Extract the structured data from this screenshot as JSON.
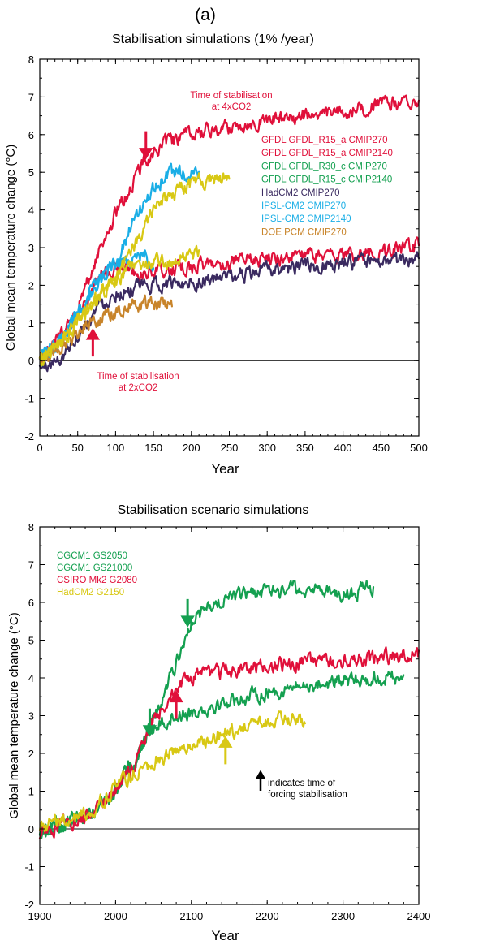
{
  "panel_letter": "(a)",
  "chart_data": [
    {
      "type": "line",
      "title": "Stabilisation simulations (1% /year)",
      "xlabel": "Year",
      "ylabel": "Global mean temperature change (°C)",
      "xlim": [
        0,
        500
      ],
      "ylim": [
        -2,
        8
      ],
      "xticks": [
        0,
        50,
        100,
        150,
        200,
        250,
        300,
        350,
        400,
        450,
        500
      ],
      "yticks": [
        -2,
        -1,
        0,
        1,
        2,
        3,
        4,
        5,
        6,
        7,
        8
      ],
      "series": [
        {
          "name": "GFDL   GFDL_R15_a CMIP270",
          "color": "#e0103a",
          "x": [
            0,
            20,
            40,
            60,
            80,
            100,
            120,
            140,
            170,
            200,
            250,
            300,
            350,
            400,
            450,
            500
          ],
          "y": [
            0,
            0.5,
            0.9,
            1.5,
            2.2,
            2.5,
            2.4,
            2.3,
            2.4,
            2.5,
            2.6,
            2.7,
            2.8,
            2.8,
            2.9,
            3.0
          ]
        },
        {
          "name": "GFDL   GFDL_R15_a CMIP2140",
          "color": "#e0103a",
          "x": [
            0,
            20,
            40,
            60,
            80,
            100,
            120,
            140,
            170,
            200,
            250,
            300,
            350,
            400,
            450,
            500
          ],
          "y": [
            0,
            0.5,
            1.0,
            1.9,
            3.0,
            3.9,
            4.6,
            5.4,
            5.8,
            6.0,
            6.2,
            6.4,
            6.5,
            6.6,
            6.8,
            6.85
          ]
        },
        {
          "name": "GFDL   GFDL_R30_c CMIP270",
          "color": "#14a050",
          "x": [],
          "y": []
        },
        {
          "name": "GFDL   GFDL_R15_c CMIP2140",
          "color": "#14a050",
          "x": [],
          "y": []
        },
        {
          "name": "HadCM2 CMIP270",
          "color": "#3a2a60",
          "x": [
            0,
            25,
            50,
            75,
            100,
            150,
            200,
            250,
            300,
            350,
            400,
            450,
            500
          ],
          "y": [
            -0.2,
            0.0,
            0.7,
            1.4,
            1.8,
            2.0,
            2.1,
            2.2,
            2.4,
            2.5,
            2.6,
            2.6,
            2.7
          ]
        },
        {
          "name": "IPSL-CM2 CMIP270",
          "color": "#1aaee6",
          "x": [
            0,
            25,
            50,
            75,
            100,
            120,
            140,
            145,
            150
          ],
          "y": [
            0,
            0.5,
            1.3,
            2.0,
            2.6,
            2.7,
            2.8,
            2.6,
            2.4
          ]
        },
        {
          "name": "IPSL-CM2 CMIP2140",
          "color": "#1aaee6",
          "x": [
            0,
            25,
            50,
            75,
            100,
            120,
            140,
            160,
            180,
            200,
            210
          ],
          "y": [
            0,
            0.5,
            1.3,
            2.0,
            2.6,
            3.5,
            4.3,
            4.8,
            5.0,
            4.9,
            4.9
          ]
        },
        {
          "name": "DOE PCM CMIP270",
          "color": "#c8842a",
          "x": [
            0,
            25,
            50,
            75,
            100,
            125,
            150,
            175
          ],
          "y": [
            0,
            0.3,
            0.8,
            1.1,
            1.3,
            1.5,
            1.5,
            1.5
          ]
        },
        {
          "name": "",
          "color": "#d8c814",
          "x": [
            0,
            25,
            50,
            75,
            100,
            125,
            150,
            175,
            200,
            210
          ],
          "y": [
            0,
            0.4,
            1.0,
            1.6,
            2.2,
            2.5,
            2.6,
            2.6,
            2.8,
            2.8
          ]
        },
        {
          "name": "",
          "color": "#d8c814",
          "x": [
            0,
            25,
            50,
            75,
            100,
            125,
            150,
            175,
            200,
            225,
            250
          ],
          "y": [
            0,
            0.4,
            1.0,
            1.6,
            2.2,
            3.0,
            4.0,
            4.4,
            4.7,
            4.8,
            4.9
          ]
        }
      ],
      "annotations": [
        {
          "text_lines": [
            "Time of stabilisation",
            "at 4xCO2"
          ],
          "color": "#e0103a"
        },
        {
          "text_lines": [
            "Time of stabilisation",
            "at 2xCO2"
          ],
          "color": "#e0103a"
        }
      ],
      "arrows": [
        {
          "x": 140,
          "y_tip": 5.4,
          "direction": "down",
          "color": "#e0103a"
        },
        {
          "x": 70,
          "y_tip": 0.8,
          "direction": "up",
          "color": "#e0103a"
        }
      ],
      "legend_placement": "right, inside plot"
    },
    {
      "type": "line",
      "title": "Stabilisation scenario simulations",
      "xlabel": "Year",
      "ylabel": "Global mean temperature change  (°C)",
      "xlim": [
        1900,
        2400
      ],
      "ylim": [
        -2,
        8
      ],
      "xticks": [
        1900,
        2000,
        2100,
        2200,
        2300,
        2400
      ],
      "yticks": [
        -2,
        -1,
        0,
        1,
        2,
        3,
        4,
        5,
        6,
        7,
        8
      ],
      "series": [
        {
          "name": "CGCM1 GS2050",
          "color": "#14a050",
          "x": [
            1900,
            1925,
            1950,
            1975,
            2000,
            2025,
            2040,
            2060,
            2080,
            2100,
            2150,
            2200,
            2250,
            2300,
            2350,
            2380
          ],
          "y": [
            0,
            0.1,
            0.3,
            0.5,
            1.0,
            1.8,
            2.5,
            2.8,
            3.0,
            3.1,
            3.4,
            3.6,
            3.8,
            3.9,
            4.0,
            4.05
          ]
        },
        {
          "name": "CGCM1 GS21000",
          "color": "#14a050",
          "x": [
            1900,
            1925,
            1950,
            1975,
            2000,
            2025,
            2050,
            2075,
            2090,
            2100,
            2125,
            2150,
            2200,
            2250,
            2300,
            2340
          ],
          "y": [
            0,
            0.1,
            0.3,
            0.5,
            1.0,
            1.8,
            2.9,
            4.1,
            5.0,
            5.5,
            5.9,
            6.1,
            6.3,
            6.4,
            6.2,
            6.4
          ]
        },
        {
          "name": "CSIRO  Mk2 G2080",
          "color": "#e0103a",
          "x": [
            1900,
            1925,
            1950,
            1975,
            2000,
            2025,
            2050,
            2075,
            2100,
            2150,
            2200,
            2250,
            2300,
            2350,
            2400
          ],
          "y": [
            -0.1,
            0.1,
            0.2,
            0.5,
            1.0,
            1.7,
            2.9,
            3.6,
            4.0,
            4.2,
            4.3,
            4.4,
            4.45,
            4.55,
            4.65
          ]
        },
        {
          "name": "HadCM2 G2150",
          "color": "#d8c814",
          "x": [
            1900,
            1925,
            1950,
            1975,
            2000,
            2025,
            2050,
            2075,
            2100,
            2125,
            2150,
            2175,
            2200,
            2225,
            2250
          ],
          "y": [
            0.1,
            0.2,
            0.3,
            0.6,
            1.1,
            1.5,
            1.8,
            2.0,
            2.2,
            2.4,
            2.6,
            2.7,
            2.8,
            2.9,
            2.85
          ]
        }
      ],
      "annotations": [
        {
          "text_lines": [
            "indicates time of",
            "forcing stabilisation"
          ],
          "color": "#000000"
        }
      ],
      "arrows": [
        {
          "x": 2095,
          "y_tip": 5.4,
          "direction": "down",
          "color": "#14a050"
        },
        {
          "x": 2045,
          "y_tip": 2.5,
          "direction": "down",
          "color": "#14a050"
        },
        {
          "x": 2080,
          "y_tip": 3.6,
          "direction": "up",
          "color": "#e0103a"
        },
        {
          "x": 2145,
          "y_tip": 2.4,
          "direction": "up",
          "color": "#d8c814"
        }
      ],
      "legend_placement": "top-left, inside plot"
    }
  ]
}
